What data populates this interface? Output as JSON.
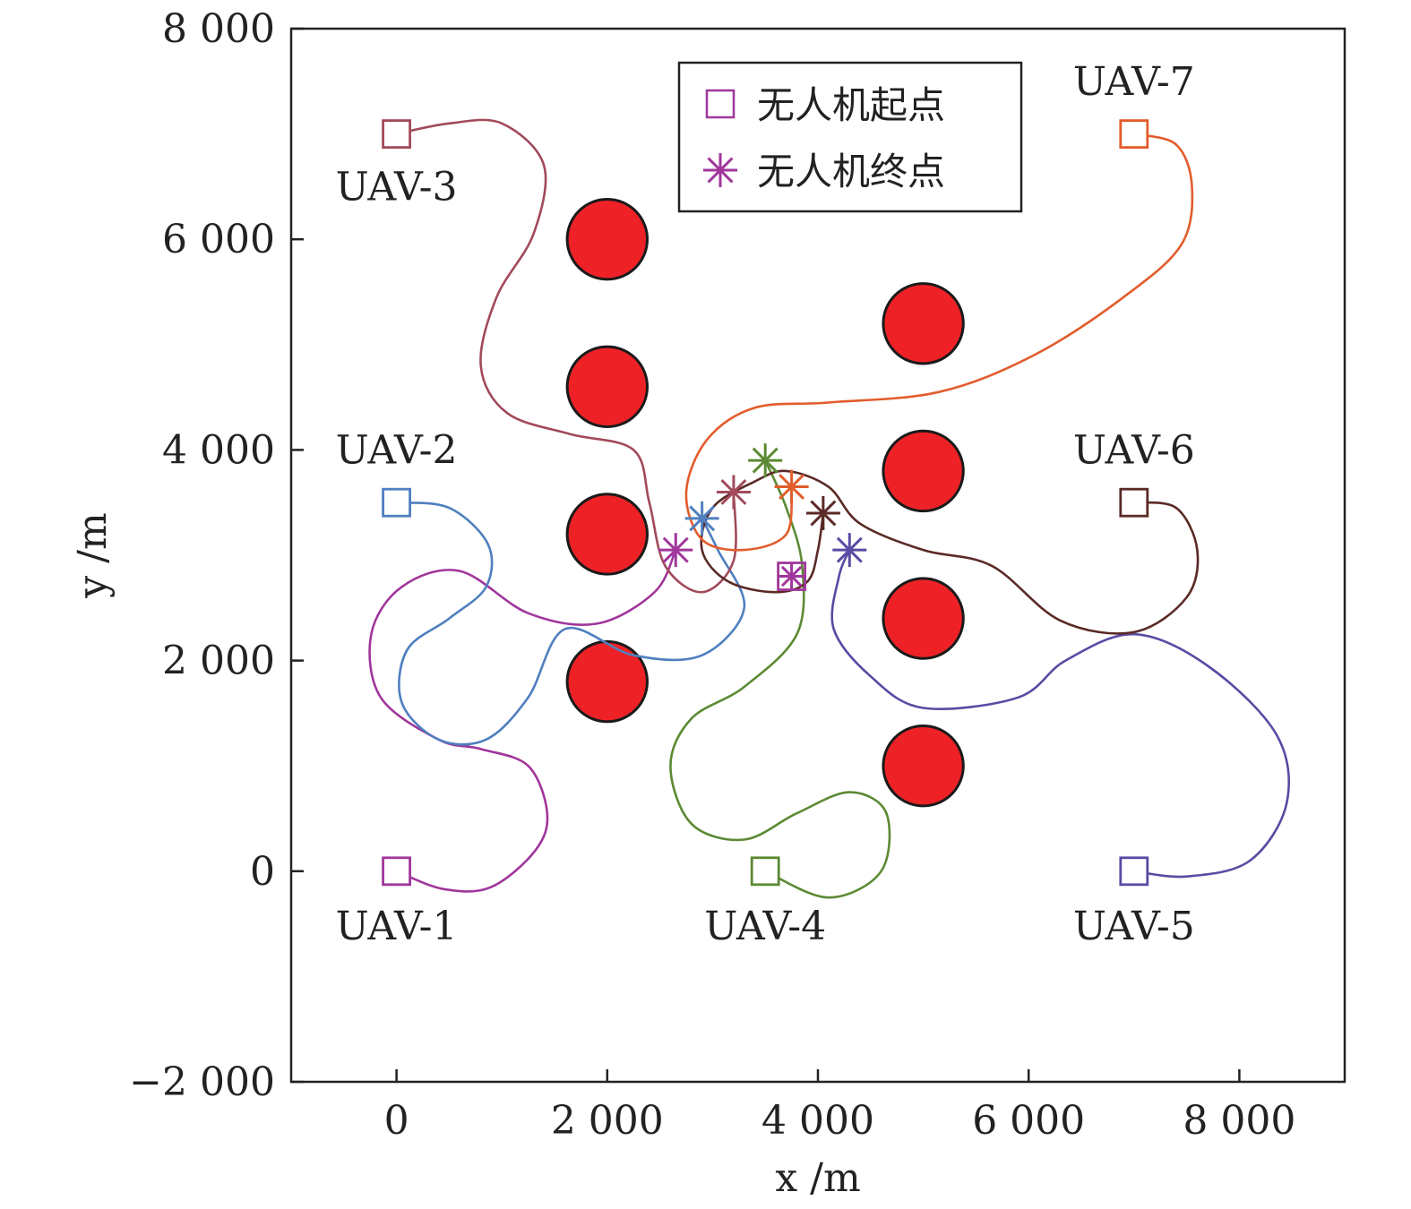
{
  "chart_data": {
    "type": "line",
    "xlabel": "x /m",
    "ylabel": "y /m",
    "xlim": [
      -1000,
      9000
    ],
    "ylim": [
      -2000,
      8000
    ],
    "xticks": [
      0,
      2000,
      4000,
      6000,
      8000
    ],
    "xtick_labels": [
      "0",
      "2 000",
      "4 000",
      "6 000",
      "8 000"
    ],
    "yticks": [
      -2000,
      0,
      2000,
      4000,
      6000,
      8000
    ],
    "ytick_labels": [
      "−2 000",
      "0",
      "2 000",
      "4 000",
      "6 000",
      "8 000"
    ],
    "grid": false,
    "legend_position": "top-center",
    "legend": [
      {
        "marker": "square",
        "label": "无人机起点",
        "color": "#a0369b"
      },
      {
        "marker": "asterisk",
        "label": "无人机终点",
        "color": "#a0369b"
      }
    ],
    "obstacles": {
      "color": "#ee2226",
      "radius": 380,
      "centers": [
        [
          2000,
          6000
        ],
        [
          2000,
          4600
        ],
        [
          2000,
          3200
        ],
        [
          2000,
          1800
        ],
        [
          5000,
          5200
        ],
        [
          5000,
          3800
        ],
        [
          5000,
          2400
        ],
        [
          5000,
          1000
        ]
      ]
    },
    "series": [
      {
        "name": "UAV-1",
        "color": "#a0369b",
        "start": [
          0,
          0
        ],
        "end": [
          2650,
          3050
        ],
        "label_pos": [
          0,
          -520
        ],
        "points": [
          [
            0,
            0
          ],
          [
            450,
            -170
          ],
          [
            900,
            -150
          ],
          [
            1320,
            200
          ],
          [
            1430,
            550
          ],
          [
            1250,
            1000
          ],
          [
            800,
            1160
          ],
          [
            400,
            1250
          ],
          [
            -150,
            1650
          ],
          [
            -240,
            2250
          ],
          [
            50,
            2700
          ],
          [
            600,
            2850
          ],
          [
            1250,
            2450
          ],
          [
            1900,
            2350
          ],
          [
            2450,
            2650
          ],
          [
            2650,
            3050
          ]
        ]
      },
      {
        "name": "UAV-2",
        "color": "#4f7fbf",
        "start": [
          0,
          3500
        ],
        "end": [
          2900,
          3350
        ],
        "label_pos": [
          0,
          4000
        ],
        "points": [
          [
            0,
            3500
          ],
          [
            500,
            3450
          ],
          [
            870,
            3100
          ],
          [
            850,
            2700
          ],
          [
            500,
            2400
          ],
          [
            100,
            2100
          ],
          [
            50,
            1600
          ],
          [
            400,
            1250
          ],
          [
            850,
            1250
          ],
          [
            1250,
            1650
          ],
          [
            1600,
            2300
          ],
          [
            2250,
            2050
          ],
          [
            2900,
            2050
          ],
          [
            3300,
            2500
          ],
          [
            3050,
            3050
          ],
          [
            2900,
            3350
          ]
        ]
      },
      {
        "name": "UAV-3",
        "color": "#a24a5a",
        "start": [
          0,
          7000
        ],
        "end": [
          3200,
          3600
        ],
        "label_pos": [
          0,
          6500
        ],
        "points": [
          [
            0,
            7000
          ],
          [
            500,
            7100
          ],
          [
            1000,
            7100
          ],
          [
            1400,
            6700
          ],
          [
            1300,
            6050
          ],
          [
            950,
            5450
          ],
          [
            800,
            4800
          ],
          [
            1050,
            4350
          ],
          [
            1650,
            4150
          ],
          [
            2250,
            4000
          ],
          [
            2400,
            3500
          ],
          [
            2550,
            2900
          ],
          [
            2900,
            2650
          ],
          [
            3200,
            2950
          ],
          [
            3200,
            3600
          ]
        ]
      },
      {
        "name": "UAV-4",
        "color": "#5b8a33",
        "start": [
          3500,
          0
        ],
        "end": [
          3500,
          3900
        ],
        "label_pos": [
          3500,
          -520
        ],
        "points": [
          [
            3500,
            0
          ],
          [
            4100,
            -250
          ],
          [
            4600,
            0
          ],
          [
            4650,
            550
          ],
          [
            4300,
            750
          ],
          [
            3800,
            550
          ],
          [
            3300,
            300
          ],
          [
            2800,
            450
          ],
          [
            2600,
            1000
          ],
          [
            2800,
            1450
          ],
          [
            3300,
            1750
          ],
          [
            3800,
            2250
          ],
          [
            3850,
            2900
          ],
          [
            3700,
            3450
          ],
          [
            3500,
            3900
          ]
        ]
      },
      {
        "name": "UAV-5",
        "color": "#5a4aa3",
        "start": [
          7000,
          0
        ],
        "end": [
          4300,
          3050
        ],
        "label_pos": [
          7000,
          -520
        ],
        "points": [
          [
            7000,
            0
          ],
          [
            7500,
            -50
          ],
          [
            8100,
            100
          ],
          [
            8450,
            650
          ],
          [
            8350,
            1300
          ],
          [
            7700,
            1950
          ],
          [
            7000,
            2250
          ],
          [
            6350,
            2000
          ],
          [
            5900,
            1650
          ],
          [
            5000,
            1550
          ],
          [
            4500,
            1850
          ],
          [
            4150,
            2300
          ],
          [
            4200,
            2800
          ],
          [
            4300,
            3050
          ]
        ]
      },
      {
        "name": "UAV-6",
        "color": "#5a2a26",
        "start": [
          7000,
          3500
        ],
        "end": [
          4050,
          3400
        ],
        "label_pos": [
          7000,
          4000
        ],
        "points": [
          [
            7000,
            3500
          ],
          [
            7400,
            3450
          ],
          [
            7600,
            3050
          ],
          [
            7500,
            2600
          ],
          [
            7000,
            2270
          ],
          [
            6300,
            2380
          ],
          [
            5650,
            2900
          ],
          [
            5000,
            3050
          ],
          [
            4400,
            3300
          ],
          [
            4100,
            3650
          ],
          [
            3700,
            3800
          ],
          [
            3400,
            3700
          ],
          [
            3000,
            3450
          ],
          [
            2900,
            3050
          ],
          [
            3150,
            2750
          ],
          [
            3600,
            2650
          ],
          [
            3900,
            2750
          ],
          [
            4000,
            3050
          ],
          [
            4050,
            3400
          ]
        ]
      },
      {
        "name": "UAV-7",
        "color": "#e25c2c",
        "start": [
          7000,
          7000
        ],
        "end": [
          3750,
          3650
        ],
        "label_pos": [
          7000,
          7500
        ],
        "points": [
          [
            7000,
            7000
          ],
          [
            7400,
            6900
          ],
          [
            7550,
            6500
          ],
          [
            7450,
            5950
          ],
          [
            6900,
            5450
          ],
          [
            6050,
            4900
          ],
          [
            5150,
            4550
          ],
          [
            4100,
            4450
          ],
          [
            3400,
            4400
          ],
          [
            2950,
            4100
          ],
          [
            2750,
            3600
          ],
          [
            2900,
            3150
          ],
          [
            3300,
            3050
          ],
          [
            3700,
            3200
          ],
          [
            3750,
            3650
          ]
        ]
      }
    ],
    "extra_marker": {
      "marker": "square-asterisk",
      "at": [
        3750,
        2800
      ],
      "color": "#a0369b"
    }
  }
}
